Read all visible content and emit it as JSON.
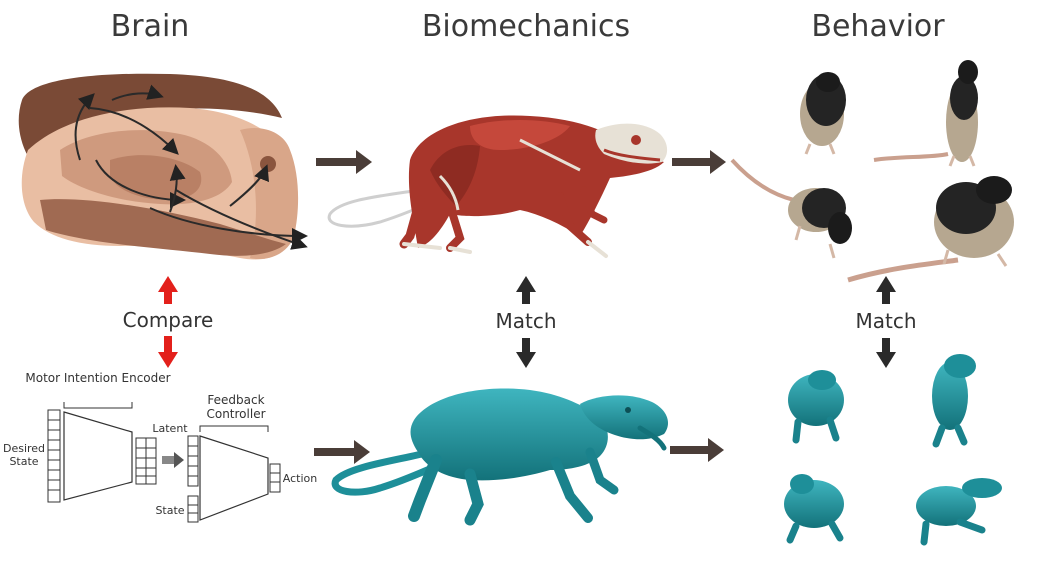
{
  "titles": {
    "brain": "Brain",
    "biomechanics": "Biomechanics",
    "behavior": "Behavior"
  },
  "labels": {
    "compare": "Compare",
    "match_center": "Match",
    "match_right": "Match"
  },
  "network": {
    "encoder": "Motor Intention Encoder",
    "controller": "Feedback Controller",
    "desired_state": "Desired State",
    "latent": "Latent",
    "state": "State",
    "action": "Action"
  },
  "colors": {
    "arrow": "#4a3d38",
    "compare_arrow": "#e3201b",
    "match_arrow": "#2a2a2a",
    "muscle": "#a8362b",
    "model": "#1e8f99",
    "brain_light": "#e8b89c",
    "brain_dark": "#7a4a36"
  }
}
